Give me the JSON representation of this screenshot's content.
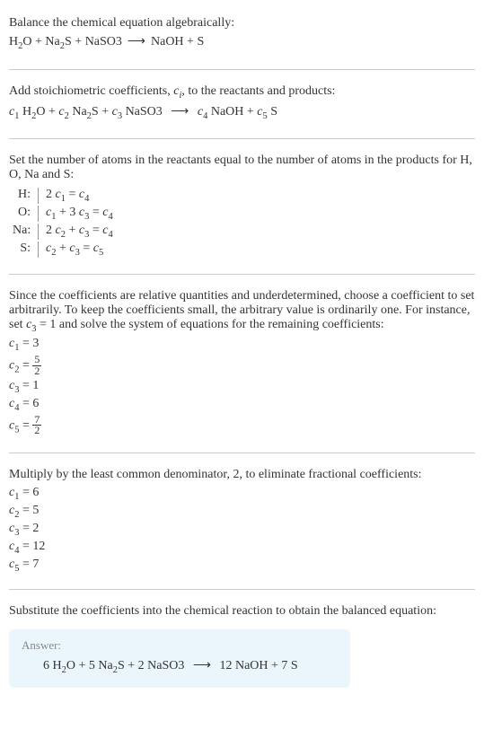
{
  "section1": {
    "intro": "Balance the chemical equation algebraically:",
    "eq_parts": {
      "h2o": "H",
      "h2o_sub": "2",
      "h2o_end": "O",
      "plus1": " + ",
      "na2s": "Na",
      "na2s_sub": "2",
      "na2s_end": "S",
      "plus2": " + ",
      "naso3": "NaSO3",
      "arrow": "⟶",
      "naoh": "NaOH",
      "plus3": " + ",
      "s": "S"
    }
  },
  "section2": {
    "intro_part1": "Add stoichiometric coefficients, ",
    "ci": "c",
    "ci_sub": "i",
    "intro_part2": ", to the reactants and products:",
    "c1": "c",
    "c1_sub": "1",
    "sp1": " H",
    "h2o_sub": "2",
    "h2o_end": "O + ",
    "c2": "c",
    "c2_sub": "2",
    "sp2": " Na",
    "na2s_sub": "2",
    "na2s_end": "S + ",
    "c3": "c",
    "c3_sub": "3",
    "sp3": " NaSO3 ",
    "arrow": "⟶",
    "c4": " c",
    "c4_sub": "4",
    "sp4": " NaOH + ",
    "c5": "c",
    "c5_sub": "5",
    "sp5": " S"
  },
  "section3": {
    "intro": "Set the number of atoms in the reactants equal to the number of atoms in the products for H, O, Na and S:",
    "rows": [
      {
        "label": "H:",
        "eq_pre": "2 ",
        "c1": "c",
        "c1s": "1",
        "mid": " = ",
        "c2": "c",
        "c2s": "4"
      },
      {
        "label": "O:",
        "eq_pre": "",
        "c1": "c",
        "c1s": "1",
        "mid": " + 3 ",
        "c2": "c",
        "c2s": "3",
        "mid2": " = ",
        "c3": "c",
        "c3s": "4"
      },
      {
        "label": "Na:",
        "eq_pre": "2 ",
        "c1": "c",
        "c1s": "2",
        "mid": " + ",
        "c2": "c",
        "c2s": "3",
        "mid2": " = ",
        "c3": "c",
        "c3s": "4"
      },
      {
        "label": "S:",
        "eq_pre": "",
        "c1": "c",
        "c1s": "2",
        "mid": " + ",
        "c2": "c",
        "c2s": "3",
        "mid2": " = ",
        "c3": "c",
        "c3s": "5"
      }
    ]
  },
  "section4": {
    "intro_p1": "Since the coefficients are relative quantities and underdetermined, choose a coefficient to set arbitrarily. To keep the coefficients small, the arbitrary value is ordinarily one. For instance, set ",
    "c3": "c",
    "c3s": "3",
    "intro_p2": " = 1 and solve the system of equations for the remaining coefficients:",
    "coefs": [
      {
        "c": "c",
        "cs": "1",
        "eq": " = 3"
      },
      {
        "c": "c",
        "cs": "2",
        "eq": " = ",
        "frac_num": "5",
        "frac_den": "2"
      },
      {
        "c": "c",
        "cs": "3",
        "eq": " = 1"
      },
      {
        "c": "c",
        "cs": "4",
        "eq": " = 6"
      },
      {
        "c": "c",
        "cs": "5",
        "eq": " = ",
        "frac_num": "7",
        "frac_den": "2"
      }
    ]
  },
  "section5": {
    "intro": "Multiply by the least common denominator, 2, to eliminate fractional coefficients:",
    "coefs": [
      {
        "c": "c",
        "cs": "1",
        "eq": " = 6"
      },
      {
        "c": "c",
        "cs": "2",
        "eq": " = 5"
      },
      {
        "c": "c",
        "cs": "3",
        "eq": " = 2"
      },
      {
        "c": "c",
        "cs": "4",
        "eq": " = 12"
      },
      {
        "c": "c",
        "cs": "5",
        "eq": " = 7"
      }
    ]
  },
  "section6": {
    "intro": "Substitute the coefficients into the chemical reaction to obtain the balanced equation:",
    "answer_label": "Answer:",
    "eq_p1": "6 H",
    "h2o_sub": "2",
    "eq_p2": "O + 5 Na",
    "na2s_sub": "2",
    "eq_p3": "S + 2 NaSO3 ",
    "arrow": "⟶",
    "eq_p4": " 12 NaOH + 7 S"
  },
  "colors": {
    "text": "#333333",
    "divider": "#cccccc",
    "answer_bg": "#eaf6fc",
    "answer_label": "#888888"
  }
}
